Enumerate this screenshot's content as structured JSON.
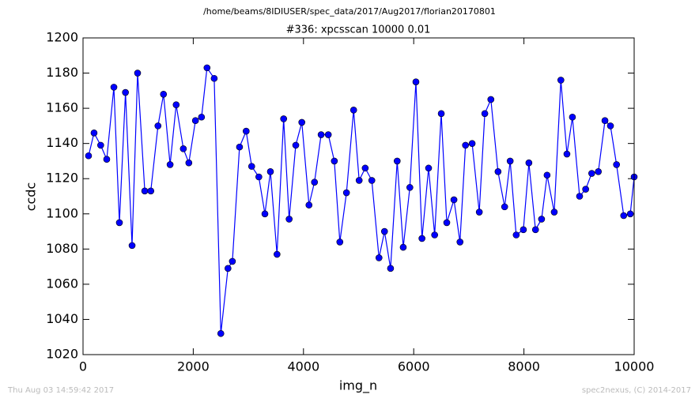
{
  "chart_data": {
    "type": "line",
    "suptitle": "/home/beams/8IDIUSER/spec_data/2017/Aug2017/florian20170801",
    "title": "#336: xpcsscan 10000 0.01",
    "xlabel": "img_n",
    "ylabel": "ccdc",
    "footer_left": "Thu Aug 03 14:59:42 2017",
    "footer_right": "spec2nexus, (C) 2014-2017",
    "color": "#0000ff",
    "markers": true,
    "x": [
      100,
      200,
      320,
      430,
      560,
      660,
      770,
      890,
      990,
      1120,
      1230,
      1360,
      1460,
      1580,
      1690,
      1820,
      1920,
      2040,
      2150,
      2250,
      2380,
      2500,
      2630,
      2710,
      2840,
      2960,
      3060,
      3190,
      3300,
      3400,
      3520,
      3640,
      3740,
      3860,
      3970,
      4100,
      4200,
      4320,
      4450,
      4560,
      4660,
      4780,
      4910,
      5010,
      5120,
      5240,
      5370,
      5470,
      5580,
      5700,
      5810,
      5930,
      6040,
      6150,
      6270,
      6380,
      6500,
      6600,
      6730,
      6840,
      6940,
      7060,
      7190,
      7290,
      7400,
      7530,
      7650,
      7750,
      7860,
      7990,
      8090,
      8210,
      8320,
      8420,
      8550,
      8670,
      8780,
      8880,
      9010,
      9120,
      9230,
      9350,
      9470,
      9570,
      9680,
      9810,
      9930,
      10000
    ],
    "values": [
      1133,
      1146,
      1139,
      1131,
      1172,
      1095,
      1169,
      1082,
      1180,
      1113,
      1113,
      1150,
      1168,
      1128,
      1162,
      1137,
      1129,
      1153,
      1155,
      1183,
      1177,
      1032,
      1069,
      1073,
      1138,
      1147,
      1127,
      1121,
      1100,
      1124,
      1077,
      1154,
      1097,
      1139,
      1152,
      1105,
      1118,
      1145,
      1145,
      1130,
      1084,
      1112,
      1159,
      1119,
      1126,
      1119,
      1075,
      1090,
      1069,
      1130,
      1081,
      1115,
      1175,
      1086,
      1126,
      1088,
      1157,
      1095,
      1108,
      1084,
      1139,
      1140,
      1101,
      1157,
      1165,
      1124,
      1104,
      1130,
      1088,
      1091,
      1129,
      1091,
      1097,
      1122,
      1101,
      1176,
      1134,
      1155,
      1110,
      1114,
      1123,
      1124,
      1153,
      1150,
      1128,
      1099,
      1100,
      1121
    ],
    "xlim": [
      0,
      10000
    ],
    "ylim": [
      1020,
      1200
    ],
    "xticks": [
      0,
      2000,
      4000,
      6000,
      8000,
      10000
    ],
    "yticks": [
      1020,
      1040,
      1060,
      1080,
      1100,
      1120,
      1140,
      1160,
      1180,
      1200
    ]
  }
}
